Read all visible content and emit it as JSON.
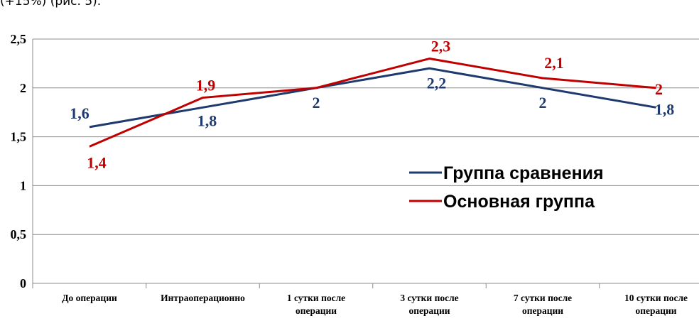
{
  "header": {
    "text": "(+15%) (рис. 5)."
  },
  "colors": {
    "series_comparison": "#1f3a6e",
    "series_main": "#c00000",
    "grid": "#8c8c8c",
    "axis": "#8c8c8c"
  },
  "chart_data": {
    "type": "line",
    "title": "",
    "xlabel": "",
    "ylabel": "",
    "categories": [
      [
        "До операции"
      ],
      [
        "Интраоперационно"
      ],
      [
        "1 сутки после",
        "операции"
      ],
      [
        "3 сутки после",
        "операции"
      ],
      [
        "7 сутки после",
        "операции"
      ],
      [
        "10 сутки после",
        "операции"
      ]
    ],
    "ylim": [
      0,
      2.5
    ],
    "yticks": [
      0,
      0.5,
      1,
      1.5,
      2,
      2.5
    ],
    "ytick_labels": [
      "0",
      "0,5",
      "1",
      "1,5",
      "2",
      "2,5"
    ],
    "grid": true,
    "legend_position": "right",
    "series": [
      {
        "name": "Группа сравнения",
        "color": "#1f3a6e",
        "values": [
          1.6,
          1.8,
          2.0,
          2.2,
          2.0,
          1.8
        ],
        "labels": [
          "1,6",
          "1,8",
          "2",
          "2,2",
          "2",
          "1,8"
        ]
      },
      {
        "name": "Основная группа",
        "color": "#c00000",
        "values": [
          1.4,
          1.9,
          2.0,
          2.3,
          2.1,
          2.0
        ],
        "labels": [
          "1,4",
          "1,9",
          "",
          "2,3",
          "2,1",
          "2"
        ]
      }
    ]
  }
}
